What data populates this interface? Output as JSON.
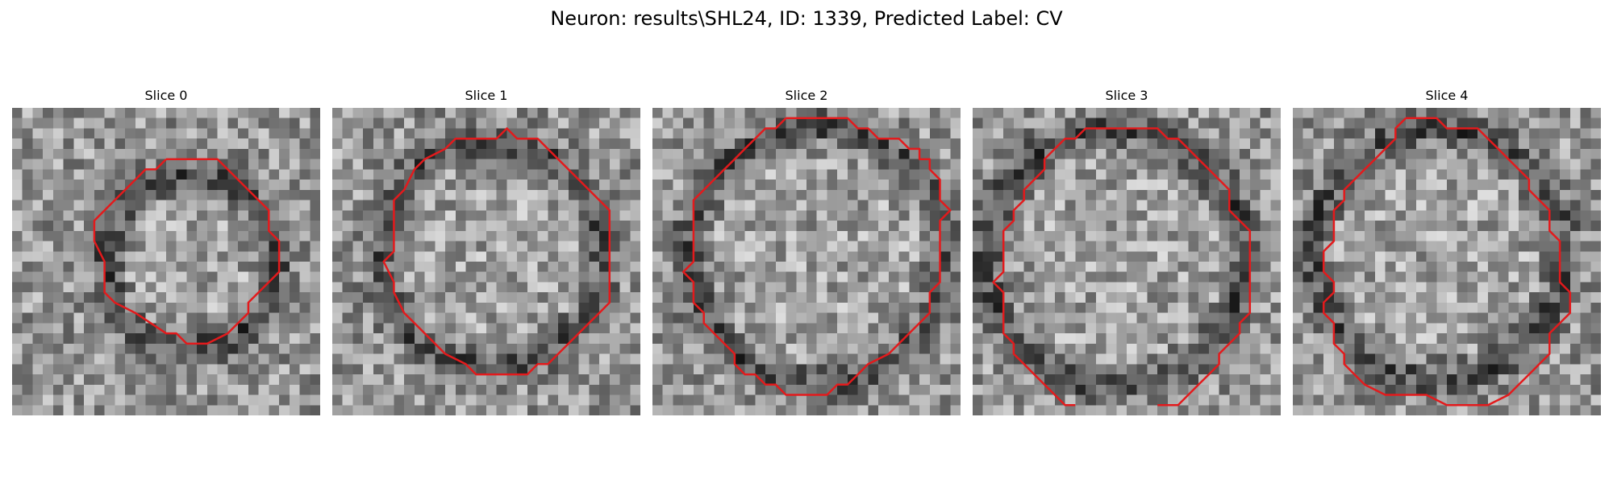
{
  "figure": {
    "title": "Neuron: results\\SHL24, ID: 1339, Predicted Label: CV"
  },
  "colors": {
    "contour": "#e31a1c",
    "background": "#ffffff"
  },
  "grid_size": 30,
  "slices": [
    {
      "title": "Slice 0",
      "contour": [
        [
          15,
          5
        ],
        [
          20,
          5
        ],
        [
          22,
          7
        ],
        [
          24,
          9
        ],
        [
          25,
          10
        ],
        [
          25,
          12
        ],
        [
          26,
          13
        ],
        [
          26,
          16
        ],
        [
          25,
          17
        ],
        [
          23,
          19
        ],
        [
          23,
          20
        ],
        [
          22,
          21
        ],
        [
          21,
          22
        ],
        [
          19,
          23
        ],
        [
          19,
          23
        ],
        [
          18,
          23
        ],
        [
          17,
          23
        ],
        [
          16,
          22
        ],
        [
          15,
          22
        ],
        [
          12,
          20
        ],
        [
          10,
          19
        ],
        [
          9,
          18
        ],
        [
          9,
          15
        ],
        [
          8,
          13
        ],
        [
          8,
          11
        ],
        [
          10,
          9
        ],
        [
          11,
          8
        ],
        [
          13,
          6
        ],
        [
          14,
          6
        ]
      ],
      "open": false
    },
    {
      "title": "Slice 1",
      "contour": [
        [
          13,
          3
        ],
        [
          16,
          3
        ],
        [
          17,
          2
        ],
        [
          18,
          3
        ],
        [
          20,
          3
        ],
        [
          22,
          5
        ],
        [
          24,
          7
        ],
        [
          25,
          8
        ],
        [
          27,
          10
        ],
        [
          27,
          19
        ],
        [
          26,
          20
        ],
        [
          25,
          21
        ],
        [
          25,
          21
        ],
        [
          24,
          22
        ],
        [
          22,
          24
        ],
        [
          21,
          25
        ],
        [
          20,
          25
        ],
        [
          19,
          26
        ],
        [
          14,
          26
        ],
        [
          13,
          25
        ],
        [
          11,
          24
        ],
        [
          9,
          22
        ],
        [
          8,
          21
        ],
        [
          7,
          20
        ],
        [
          6,
          18
        ],
        [
          6,
          17
        ],
        [
          5,
          15
        ],
        [
          6,
          14
        ],
        [
          6,
          9
        ],
        [
          7,
          8
        ],
        [
          8,
          6
        ],
        [
          9,
          5
        ],
        [
          11,
          4
        ],
        [
          12,
          3
        ]
      ],
      "open": false
    },
    {
      "title": "Slice 2",
      "contour": [
        [
          13,
          1
        ],
        [
          19,
          1
        ],
        [
          20,
          2
        ],
        [
          21,
          2
        ],
        [
          22,
          3
        ],
        [
          24,
          3
        ],
        [
          25,
          4
        ],
        [
          26,
          4
        ],
        [
          26,
          5
        ],
        [
          27,
          5
        ],
        [
          27,
          6
        ],
        [
          28,
          7
        ],
        [
          28,
          9
        ],
        [
          29,
          10
        ],
        [
          28,
          11
        ],
        [
          28,
          17
        ],
        [
          27,
          18
        ],
        [
          27,
          20
        ],
        [
          26,
          21
        ],
        [
          25,
          22
        ],
        [
          24,
          23
        ],
        [
          23,
          24
        ],
        [
          21,
          25
        ],
        [
          20,
          26
        ],
        [
          19,
          27
        ],
        [
          18,
          27
        ],
        [
          17,
          28
        ],
        [
          13,
          28
        ],
        [
          12,
          27
        ],
        [
          11,
          27
        ],
        [
          10,
          26
        ],
        [
          9,
          26
        ],
        [
          8,
          25
        ],
        [
          8,
          24
        ],
        [
          7,
          23
        ],
        [
          6,
          22
        ],
        [
          5,
          21
        ],
        [
          5,
          20
        ],
        [
          4,
          19
        ],
        [
          4,
          17
        ],
        [
          3,
          16
        ],
        [
          4,
          15
        ],
        [
          4,
          9
        ],
        [
          5,
          8
        ],
        [
          6,
          7
        ],
        [
          7,
          6
        ],
        [
          8,
          5
        ],
        [
          9,
          4
        ],
        [
          10,
          3
        ],
        [
          11,
          2
        ],
        [
          12,
          2
        ]
      ],
      "open": false
    },
    {
      "title": "Slice 3",
      "contour": [
        [
          18,
          29
        ],
        [
          20,
          29
        ],
        [
          21,
          28
        ],
        [
          22,
          27
        ],
        [
          23,
          26
        ],
        [
          24,
          25
        ],
        [
          24,
          24
        ],
        [
          25,
          23
        ],
        [
          26,
          22
        ],
        [
          26,
          21
        ],
        [
          27,
          20
        ],
        [
          27,
          12
        ],
        [
          26,
          11
        ],
        [
          25,
          10
        ],
        [
          25,
          8
        ],
        [
          24,
          7
        ],
        [
          23,
          6
        ],
        [
          22,
          5
        ],
        [
          21,
          4
        ],
        [
          20,
          3
        ],
        [
          19,
          3
        ],
        [
          18,
          2
        ],
        [
          16,
          2
        ],
        [
          15,
          2
        ],
        [
          13,
          2
        ],
        [
          11,
          2
        ],
        [
          10,
          3
        ],
        [
          9,
          3
        ],
        [
          8,
          4
        ],
        [
          7,
          5
        ],
        [
          7,
          6
        ],
        [
          6,
          7
        ],
        [
          5,
          8
        ],
        [
          5,
          9
        ],
        [
          4,
          10
        ],
        [
          4,
          11
        ],
        [
          3,
          12
        ],
        [
          3,
          14
        ],
        [
          3,
          16
        ],
        [
          2,
          17
        ],
        [
          3,
          18
        ],
        [
          3,
          22
        ],
        [
          4,
          23
        ],
        [
          4,
          24
        ],
        [
          5,
          25
        ],
        [
          6,
          26
        ],
        [
          7,
          27
        ],
        [
          8,
          28
        ],
        [
          9,
          29
        ],
        [
          10,
          29
        ]
      ],
      "open": true
    },
    {
      "title": "Slice 4",
      "contour": [
        [
          11,
          1
        ],
        [
          12,
          1
        ],
        [
          14,
          1
        ],
        [
          15,
          2
        ],
        [
          17,
          2
        ],
        [
          18,
          2
        ],
        [
          19,
          3
        ],
        [
          20,
          4
        ],
        [
          21,
          5
        ],
        [
          22,
          6
        ],
        [
          23,
          7
        ],
        [
          23,
          8
        ],
        [
          24,
          9
        ],
        [
          25,
          10
        ],
        [
          25,
          12
        ],
        [
          26,
          13
        ],
        [
          26,
          17
        ],
        [
          27,
          18
        ],
        [
          27,
          20
        ],
        [
          26,
          21
        ],
        [
          25,
          22
        ],
        [
          25,
          24
        ],
        [
          24,
          25
        ],
        [
          23,
          26
        ],
        [
          22,
          27
        ],
        [
          21,
          28
        ],
        [
          19,
          29
        ],
        [
          15,
          29
        ],
        [
          13,
          28
        ],
        [
          9,
          28
        ],
        [
          7,
          27
        ],
        [
          6,
          26
        ],
        [
          5,
          25
        ],
        [
          5,
          24
        ],
        [
          4,
          23
        ],
        [
          4,
          21
        ],
        [
          3,
          20
        ],
        [
          3,
          19
        ],
        [
          4,
          18
        ],
        [
          4,
          17
        ],
        [
          3,
          16
        ],
        [
          3,
          14
        ],
        [
          4,
          13
        ],
        [
          4,
          10
        ],
        [
          5,
          9
        ],
        [
          5,
          8
        ],
        [
          6,
          7
        ],
        [
          7,
          6
        ],
        [
          8,
          5
        ],
        [
          9,
          4
        ],
        [
          10,
          3
        ],
        [
          10,
          2
        ]
      ],
      "open": false
    }
  ]
}
